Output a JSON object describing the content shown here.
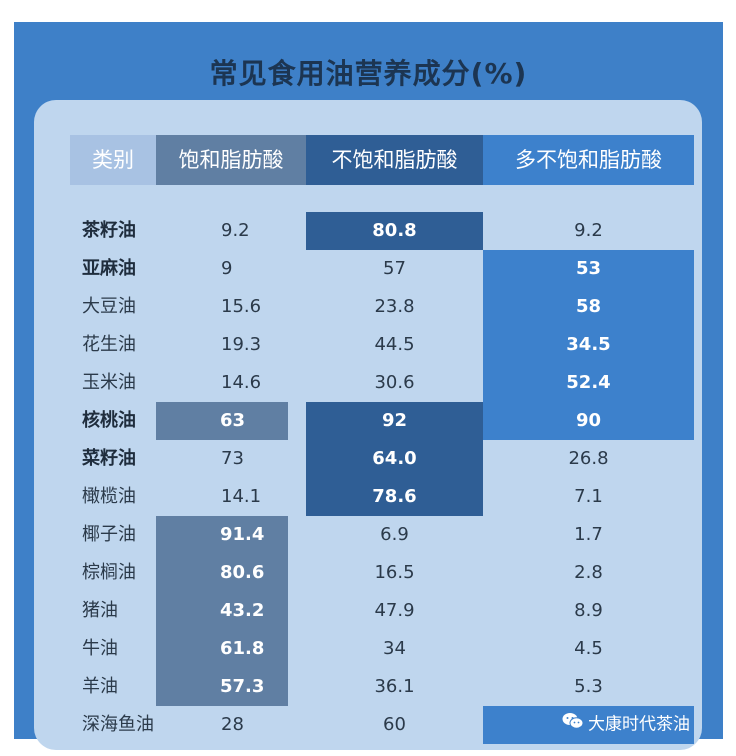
{
  "title": "常见食用油营养成分(%)",
  "watermark": "大康时代茶油",
  "colors": {
    "background": "#3e80c8",
    "panel": "#bfd6ee",
    "saturated_highlight": "#607fa3",
    "mono_highlight": "#2f5e95",
    "poly_highlight": "#3d81cc",
    "title": "#1c3552"
  },
  "chart_data": {
    "type": "table",
    "title": "常见食用油营养成分(%)",
    "columns": [
      "类别",
      "饱和脂肪酸",
      "不饱和脂肪酸",
      "多不饱和脂肪酸"
    ],
    "rows": [
      {
        "name": "茶籽油",
        "bold": true,
        "sat": "9.2",
        "mono": "80.8",
        "poly": "9.2",
        "hi": [
          false,
          true,
          false
        ]
      },
      {
        "name": "亚麻油",
        "bold": true,
        "sat": "9",
        "mono": "57",
        "poly": "53",
        "hi": [
          false,
          false,
          true
        ]
      },
      {
        "name": "大豆油",
        "bold": false,
        "sat": "15.6",
        "mono": "23.8",
        "poly": "58",
        "hi": [
          false,
          false,
          true
        ]
      },
      {
        "name": "花生油",
        "bold": false,
        "sat": "19.3",
        "mono": "44.5",
        "poly": "34.5",
        "hi": [
          false,
          false,
          true
        ]
      },
      {
        "name": "玉米油",
        "bold": false,
        "sat": "14.6",
        "mono": "30.6",
        "poly": "52.4",
        "hi": [
          false,
          false,
          true
        ]
      },
      {
        "name": "核桃油",
        "bold": true,
        "sat": "63",
        "mono": "92",
        "poly": "90",
        "hi": [
          true,
          true,
          true
        ]
      },
      {
        "name": "菜籽油",
        "bold": true,
        "sat": "73",
        "mono": "64.0",
        "poly": "26.8",
        "hi": [
          false,
          true,
          false
        ]
      },
      {
        "name": "橄榄油",
        "bold": false,
        "sat": "14.1",
        "mono": "78.6",
        "poly": "7.1",
        "hi": [
          false,
          true,
          false
        ]
      },
      {
        "name": "椰子油",
        "bold": false,
        "sat": "91.4",
        "mono": "6.9",
        "poly": "1.7",
        "hi": [
          true,
          false,
          false
        ]
      },
      {
        "name": "棕榈油",
        "bold": false,
        "sat": "80.6",
        "mono": "16.5",
        "poly": "2.8",
        "hi": [
          true,
          false,
          false
        ]
      },
      {
        "name": "猪油",
        "bold": false,
        "sat": "43.2",
        "mono": "47.9",
        "poly": "8.9",
        "hi": [
          true,
          false,
          false
        ]
      },
      {
        "name": "牛油",
        "bold": false,
        "sat": "61.8",
        "mono": "34",
        "poly": "4.5",
        "hi": [
          true,
          false,
          false
        ]
      },
      {
        "name": "羊油",
        "bold": false,
        "sat": "57.3",
        "mono": "36.1",
        "poly": "5.3",
        "hi": [
          true,
          false,
          false
        ]
      },
      {
        "name": "深海鱼油",
        "bold": false,
        "sat": "28",
        "mono": "60",
        "poly": "",
        "hi": [
          false,
          false,
          true
        ]
      }
    ]
  }
}
